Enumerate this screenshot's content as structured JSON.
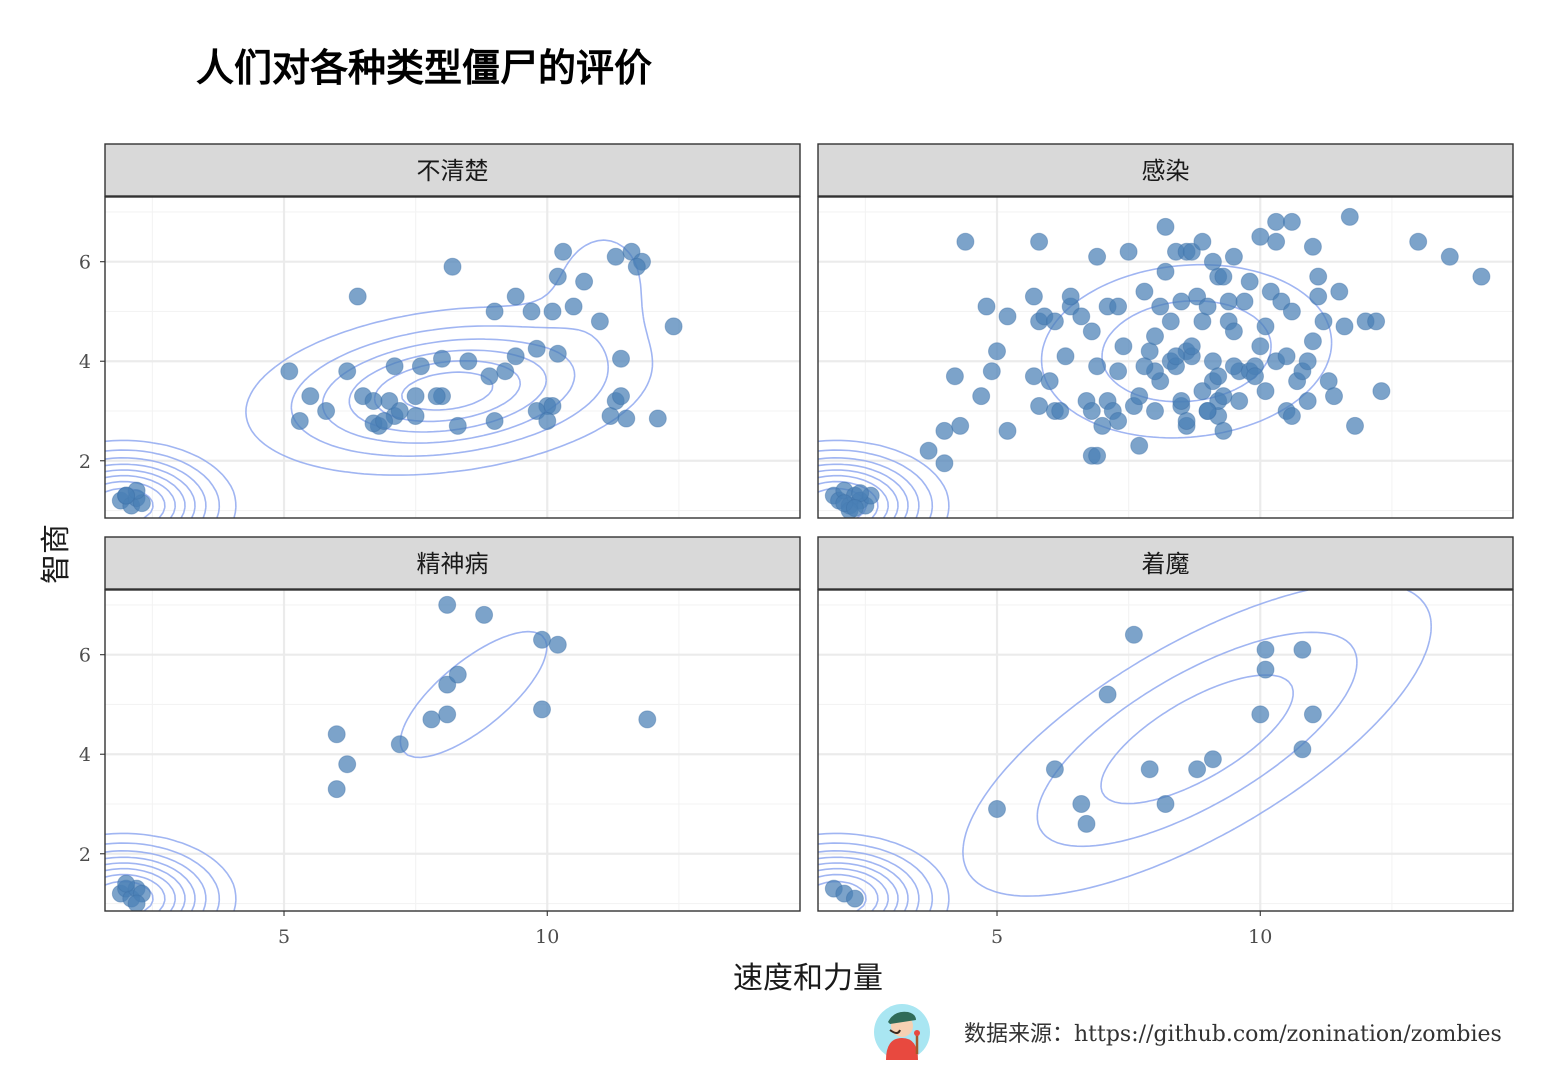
{
  "title": "人们对各种类型僵尸的评价",
  "caption": "数据来源：https://github.com/zonination/zombies",
  "colors": {
    "point": "#4a7fb5",
    "contour": "#8fa8f0",
    "strip": "#d9d9d9"
  },
  "chart_data": {
    "type": "scatter",
    "facets": [
      "不清楚",
      "感染",
      "精神病",
      "着魔"
    ],
    "xlabel": "速度和力量",
    "ylabel": "智商",
    "xlim": [
      1.6,
      14.8
    ],
    "ylim": [
      0.85,
      7.3
    ],
    "xticks": [
      5,
      10
    ],
    "yticks": [
      2,
      4,
      6
    ],
    "contours": true,
    "grid": true,
    "panels": [
      {
        "name": "不清楚",
        "points": [
          [
            1.9,
            1.2
          ],
          [
            2.0,
            1.3
          ],
          [
            2.1,
            1.1
          ],
          [
            2.2,
            1.25
          ],
          [
            2.3,
            1.15
          ],
          [
            2.2,
            1.4
          ],
          [
            2.0,
            1.3
          ],
          [
            6.8,
            2.7
          ],
          [
            7.1,
            2.9
          ],
          [
            7.5,
            3.3
          ],
          [
            7.0,
            3.2
          ],
          [
            8.0,
            3.3
          ],
          [
            9.0,
            2.8
          ],
          [
            10.0,
            3.1
          ],
          [
            9.8,
            3.0
          ],
          [
            6.5,
            3.3
          ],
          [
            6.7,
            3.2
          ],
          [
            7.6,
            3.9
          ],
          [
            8.0,
            4.05
          ],
          [
            8.5,
            4.0
          ],
          [
            7.1,
            3.9
          ],
          [
            9.4,
            4.1
          ],
          [
            9.2,
            3.8
          ],
          [
            10.2,
            4.15
          ],
          [
            9.8,
            4.25
          ],
          [
            9.0,
            5.0
          ],
          [
            9.4,
            5.3
          ],
          [
            10.1,
            5.0
          ],
          [
            10.5,
            5.1
          ],
          [
            10.7,
            5.6
          ],
          [
            11.0,
            4.8
          ],
          [
            11.3,
            6.1
          ],
          [
            11.6,
            6.2
          ],
          [
            11.8,
            6.0
          ],
          [
            11.7,
            5.9
          ],
          [
            12.4,
            4.7
          ],
          [
            12.1,
            2.85
          ],
          [
            11.5,
            2.85
          ],
          [
            11.2,
            2.9
          ],
          [
            11.3,
            3.2
          ],
          [
            11.4,
            3.3
          ],
          [
            11.4,
            4.05
          ],
          [
            6.7,
            2.75
          ],
          [
            6.9,
            2.8
          ],
          [
            7.2,
            3.0
          ],
          [
            7.5,
            2.9
          ],
          [
            8.3,
            2.7
          ],
          [
            7.9,
            3.3
          ],
          [
            8.9,
            3.7
          ],
          [
            10.1,
            3.1
          ],
          [
            10.0,
            2.8
          ],
          [
            9.7,
            5.0
          ],
          [
            10.2,
            5.7
          ],
          [
            6.2,
            3.8
          ],
          [
            5.1,
            3.8
          ],
          [
            5.8,
            3.0
          ],
          [
            5.5,
            3.3
          ],
          [
            5.3,
            2.8
          ],
          [
            6.4,
            5.3
          ],
          [
            8.2,
            5.9
          ],
          [
            10.3,
            6.2
          ]
        ]
      },
      {
        "name": "感染",
        "points": [
          [
            1.9,
            1.3
          ],
          [
            2.0,
            1.2
          ],
          [
            2.1,
            1.4
          ],
          [
            2.2,
            1.1
          ],
          [
            2.3,
            1.3
          ],
          [
            2.4,
            1.2
          ],
          [
            2.5,
            1.1
          ],
          [
            2.6,
            1.3
          ],
          [
            2.2,
            1.0
          ],
          [
            2.4,
            1.35
          ],
          [
            2.1,
            1.15
          ],
          [
            2.3,
            1.05
          ],
          [
            3.7,
            2.2
          ],
          [
            4.0,
            2.6
          ],
          [
            4.0,
            1.95
          ],
          [
            4.2,
            3.7
          ],
          [
            4.3,
            2.7
          ],
          [
            4.7,
            3.3
          ],
          [
            4.8,
            5.1
          ],
          [
            4.9,
            3.8
          ],
          [
            5.0,
            4.2
          ],
          [
            5.2,
            4.9
          ],
          [
            5.2,
            2.6
          ],
          [
            4.4,
            6.4
          ],
          [
            5.7,
            5.3
          ],
          [
            5.8,
            4.8
          ],
          [
            5.9,
            4.9
          ],
          [
            5.7,
            3.7
          ],
          [
            5.8,
            3.1
          ],
          [
            6.0,
            3.6
          ],
          [
            6.1,
            4.8
          ],
          [
            6.1,
            3.0
          ],
          [
            6.2,
            3.0
          ],
          [
            6.3,
            4.1
          ],
          [
            6.4,
            5.1
          ],
          [
            6.4,
            5.3
          ],
          [
            6.6,
            4.9
          ],
          [
            6.7,
            3.2
          ],
          [
            6.8,
            3.0
          ],
          [
            6.8,
            4.6
          ],
          [
            6.9,
            6.1
          ],
          [
            6.9,
            3.9
          ],
          [
            7.0,
            2.7
          ],
          [
            6.8,
            2.1
          ],
          [
            6.9,
            2.1
          ],
          [
            7.1,
            3.2
          ],
          [
            7.2,
            3.0
          ],
          [
            7.3,
            2.8
          ],
          [
            7.1,
            5.1
          ],
          [
            7.3,
            3.8
          ],
          [
            7.3,
            5.1
          ],
          [
            7.4,
            4.3
          ],
          [
            7.5,
            6.2
          ],
          [
            7.6,
            3.1
          ],
          [
            7.7,
            2.3
          ],
          [
            7.7,
            3.3
          ],
          [
            7.8,
            5.4
          ],
          [
            7.9,
            4.2
          ],
          [
            8.0,
            3.0
          ],
          [
            8.0,
            4.5
          ],
          [
            8.1,
            5.1
          ],
          [
            8.2,
            5.8
          ],
          [
            8.1,
            3.6
          ],
          [
            8.3,
            4.0
          ],
          [
            8.3,
            4.8
          ],
          [
            8.4,
            3.9
          ],
          [
            8.4,
            6.2
          ],
          [
            8.5,
            3.1
          ],
          [
            8.5,
            3.2
          ],
          [
            8.5,
            5.2
          ],
          [
            8.6,
            6.2
          ],
          [
            8.6,
            4.2
          ],
          [
            8.6,
            2.7
          ],
          [
            8.7,
            4.1
          ],
          [
            8.7,
            4.3
          ],
          [
            8.8,
            5.3
          ],
          [
            8.9,
            3.4
          ],
          [
            8.9,
            4.8
          ],
          [
            9.0,
            5.1
          ],
          [
            9.0,
            3.0
          ],
          [
            9.1,
            4.0
          ],
          [
            9.1,
            3.6
          ],
          [
            9.2,
            2.9
          ],
          [
            9.2,
            5.7
          ],
          [
            9.2,
            3.2
          ],
          [
            9.3,
            2.6
          ],
          [
            9.3,
            3.3
          ],
          [
            9.4,
            5.2
          ],
          [
            9.4,
            4.8
          ],
          [
            9.5,
            4.6
          ],
          [
            9.6,
            3.8
          ],
          [
            9.6,
            3.2
          ],
          [
            9.7,
            5.2
          ],
          [
            9.8,
            5.6
          ],
          [
            9.8,
            3.8
          ],
          [
            9.9,
            3.9
          ],
          [
            10.0,
            4.3
          ],
          [
            10.1,
            3.4
          ],
          [
            10.1,
            4.7
          ],
          [
            10.2,
            5.4
          ],
          [
            10.3,
            4.0
          ],
          [
            10.4,
            5.2
          ],
          [
            10.5,
            4.1
          ],
          [
            10.5,
            3.0
          ],
          [
            10.6,
            2.9
          ],
          [
            10.6,
            5.0
          ],
          [
            10.7,
            3.6
          ],
          [
            10.8,
            3.8
          ],
          [
            10.9,
            4.0
          ],
          [
            11.0,
            4.4
          ],
          [
            11.1,
            5.3
          ],
          [
            11.1,
            5.7
          ],
          [
            11.2,
            4.8
          ],
          [
            11.3,
            3.6
          ],
          [
            11.4,
            3.3
          ],
          [
            11.5,
            5.4
          ],
          [
            11.6,
            4.7
          ],
          [
            11.7,
            6.9
          ],
          [
            12.0,
            4.8
          ],
          [
            12.2,
            4.8
          ],
          [
            12.3,
            3.4
          ],
          [
            11.8,
            2.7
          ],
          [
            10.3,
            6.8
          ],
          [
            10.6,
            6.8
          ],
          [
            8.2,
            6.7
          ],
          [
            10.0,
            6.5
          ],
          [
            10.3,
            6.4
          ],
          [
            11.0,
            6.3
          ],
          [
            13.0,
            6.4
          ],
          [
            13.6,
            6.1
          ],
          [
            14.2,
            5.7
          ],
          [
            9.0,
            3.0
          ],
          [
            8.6,
            2.8
          ],
          [
            8.0,
            3.8
          ],
          [
            9.9,
            3.7
          ],
          [
            10.9,
            3.2
          ],
          [
            9.5,
            3.9
          ],
          [
            9.2,
            3.7
          ],
          [
            8.4,
            4.1
          ],
          [
            7.8,
            3.9
          ],
          [
            5.8,
            6.4
          ],
          [
            8.7,
            6.2
          ],
          [
            8.9,
            6.4
          ],
          [
            9.1,
            6.0
          ],
          [
            9.3,
            5.7
          ],
          [
            9.5,
            6.1
          ]
        ]
      },
      {
        "name": "精神病",
        "points": [
          [
            1.9,
            1.2
          ],
          [
            2.0,
            1.3
          ],
          [
            2.1,
            1.1
          ],
          [
            2.2,
            1.3
          ],
          [
            2.3,
            1.2
          ],
          [
            2.2,
            1.0
          ],
          [
            2.0,
            1.4
          ],
          [
            6.0,
            4.4
          ],
          [
            6.2,
            3.8
          ],
          [
            6.0,
            3.3
          ],
          [
            7.2,
            4.2
          ],
          [
            7.8,
            4.7
          ],
          [
            8.1,
            4.8
          ],
          [
            8.1,
            5.4
          ],
          [
            8.3,
            5.6
          ],
          [
            8.1,
            7.0
          ],
          [
            8.8,
            6.8
          ],
          [
            9.9,
            6.3
          ],
          [
            10.2,
            6.2
          ],
          [
            9.9,
            4.9
          ],
          [
            11.9,
            4.7
          ]
        ]
      },
      {
        "name": "着魔",
        "points": [
          [
            1.9,
            1.3
          ],
          [
            2.1,
            1.2
          ],
          [
            2.3,
            1.1
          ],
          [
            5.0,
            2.9
          ],
          [
            6.1,
            3.7
          ],
          [
            6.6,
            3.0
          ],
          [
            6.7,
            2.6
          ],
          [
            7.1,
            5.2
          ],
          [
            7.6,
            6.4
          ],
          [
            7.9,
            3.7
          ],
          [
            8.2,
            3.0
          ],
          [
            8.8,
            3.7
          ],
          [
            9.1,
            3.9
          ],
          [
            10.1,
            6.1
          ],
          [
            10.1,
            5.7
          ],
          [
            10.0,
            4.8
          ],
          [
            10.8,
            6.1
          ],
          [
            10.8,
            4.1
          ],
          [
            11.0,
            4.8
          ]
        ]
      }
    ]
  }
}
